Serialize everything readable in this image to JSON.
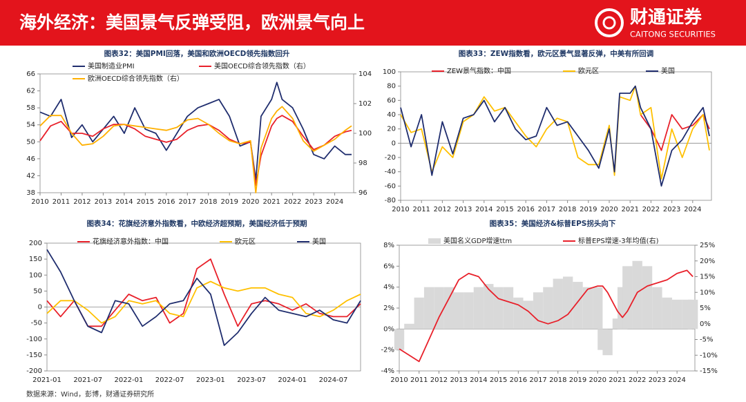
{
  "header": {
    "title": "海外经济：美国景气反弹受阻，欧洲景气向上",
    "logo_cn": "财通证券",
    "logo_en": "CAITONG SECURITIES"
  },
  "chart_data": [
    {
      "type": "line",
      "title": "图表32：美国PMI回落，美国和欧洲OECD领先指数回升",
      "x": [
        2010,
        2010.5,
        2011,
        2011.5,
        2012,
        2012.5,
        2013,
        2013.5,
        2014,
        2014.5,
        2015,
        2015.5,
        2016,
        2016.5,
        2017,
        2017.5,
        2018,
        2018.5,
        2019,
        2019.5,
        2020,
        2020.25,
        2020.5,
        2021,
        2021.25,
        2021.5,
        2022,
        2022.5,
        2023,
        2023.5,
        2024,
        2024.5,
        2024.8
      ],
      "xlim": [
        2010,
        2024.9
      ],
      "xticks": [
        2010,
        2011,
        2012,
        2013,
        2014,
        2015,
        2016,
        2017,
        2018,
        2019,
        2020,
        2021,
        2022,
        2023,
        2024
      ],
      "ylim": [
        38,
        66
      ],
      "yticks": [
        38,
        42,
        46,
        50,
        54,
        58,
        62,
        66
      ],
      "y2lim": [
        96,
        104
      ],
      "y2ticks": [
        96,
        98,
        100,
        102,
        104
      ],
      "series": [
        {
          "name": "美国制造业PMI",
          "color": "#1f2d6e",
          "values": [
            57,
            56,
            60,
            51,
            54,
            50,
            53,
            56,
            52,
            58,
            53,
            52,
            48,
            52,
            56,
            58,
            59,
            60,
            56,
            49,
            50,
            41,
            56,
            60,
            64,
            60,
            58,
            53,
            47,
            46,
            49,
            47,
            47
          ]
        },
        {
          "name": "美国OECD综合领先指数（右）",
          "color": "#e8202a",
          "axis": "y2",
          "values": [
            99.5,
            100.5,
            100.8,
            100,
            100,
            99.8,
            100.3,
            100.6,
            100.6,
            100.3,
            99.8,
            99.6,
            99.4,
            99.6,
            100.2,
            100.5,
            100.6,
            100.2,
            99.6,
            99.3,
            99.4,
            96.5,
            98.5,
            100.5,
            101,
            101.2,
            100.8,
            99.8,
            98.9,
            99.2,
            99.8,
            100.1,
            100.2
          ]
        },
        {
          "name": "欧洲OECD综合领先指数（右）",
          "color": "#ffb000",
          "axis": "y2",
          "values": [
            100.5,
            101.2,
            101.2,
            100,
            99.2,
            99.3,
            99.8,
            100.5,
            100.6,
            100.5,
            100.4,
            100.3,
            100.2,
            100.4,
            100.9,
            101,
            100.6,
            100,
            99.5,
            99.3,
            99.5,
            96,
            99,
            101,
            101.5,
            101.8,
            101,
            99.5,
            98.8,
            99.2,
            99.6,
            100.2,
            100.5
          ]
        }
      ]
    },
    {
      "type": "line",
      "title": "图表33：ZEW指数看，欧元区景气显著反弹，中美有所回调",
      "x": [
        2010,
        2010.5,
        2011,
        2011.5,
        2012,
        2012.5,
        2013,
        2013.5,
        2014,
        2014.5,
        2015,
        2015.5,
        2016,
        2016.5,
        2017,
        2017.5,
        2018,
        2018.5,
        2019,
        2019.5,
        2020,
        2020.25,
        2020.5,
        2021,
        2021.25,
        2021.5,
        2022,
        2022.5,
        2023,
        2023.5,
        2024,
        2024.5,
        2024.8
      ],
      "xlim": [
        2010,
        2024.9
      ],
      "xticks": [
        2010,
        2011,
        2012,
        2013,
        2014,
        2015,
        2016,
        2017,
        2018,
        2019,
        2020,
        2021,
        2022,
        2023,
        2024
      ],
      "ylim": [
        -80,
        100
      ],
      "yticks": [
        -80,
        -60,
        -40,
        -20,
        0,
        20,
        40,
        60,
        80,
        100
      ],
      "series": [
        {
          "name": "ZEW景气指数：中国",
          "color": "#e8202a",
          "values": [
            null,
            null,
            null,
            null,
            null,
            null,
            null,
            null,
            null,
            null,
            null,
            null,
            null,
            null,
            null,
            null,
            null,
            null,
            null,
            null,
            null,
            null,
            null,
            null,
            null,
            40,
            20,
            -10,
            40,
            20,
            25,
            40,
            20
          ]
        },
        {
          "name": "欧元区",
          "color": "#ffc000",
          "values": [
            40,
            15,
            20,
            -40,
            -5,
            -20,
            30,
            40,
            65,
            45,
            50,
            30,
            10,
            -5,
            20,
            35,
            30,
            -20,
            -30,
            -30,
            25,
            -45,
            65,
            60,
            80,
            40,
            50,
            -50,
            20,
            -20,
            20,
            40,
            -10
          ]
        },
        {
          "name": "美国",
          "color": "#1f2d6e",
          "values": [
            50,
            -5,
            40,
            -45,
            30,
            -15,
            35,
            40,
            60,
            30,
            50,
            20,
            5,
            10,
            50,
            25,
            30,
            10,
            -10,
            -35,
            20,
            -40,
            70,
            70,
            80,
            50,
            20,
            -60,
            -10,
            5,
            30,
            50,
            10
          ]
        }
      ]
    },
    {
      "type": "line",
      "title": "图表34：花旗经济意外指数看，中欧经济超预期，美国经济低于预期",
      "categories": [
        "2021-01",
        null,
        null,
        "2021-07",
        null,
        null,
        "2022-01",
        null,
        null,
        "2022-07",
        null,
        null,
        "2023-01",
        null,
        null,
        "2023-07",
        null,
        null,
        "2024-01",
        null,
        null,
        "2024-07",
        null,
        null
      ],
      "ylim": [
        -200,
        200
      ],
      "yticks": [
        -200,
        -150,
        -100,
        -50,
        0,
        50,
        100,
        150,
        200
      ],
      "series": [
        {
          "name": "花旗经济意外指数：中国",
          "color": "#e8202a",
          "values": [
            20,
            -30,
            20,
            -60,
            -60,
            -10,
            40,
            20,
            30,
            -50,
            -20,
            120,
            150,
            40,
            -60,
            10,
            20,
            10,
            -10,
            10,
            -20,
            -30,
            -30,
            10
          ]
        },
        {
          "name": "欧元区",
          "color": "#ffc000",
          "values": [
            -20,
            20,
            20,
            -10,
            -50,
            -30,
            20,
            10,
            20,
            -20,
            -30,
            60,
            80,
            60,
            50,
            60,
            60,
            40,
            30,
            -20,
            -30,
            -10,
            20,
            40
          ]
        },
        {
          "name": "美国",
          "color": "#1f2d6e",
          "values": [
            180,
            110,
            20,
            -60,
            -80,
            20,
            10,
            -60,
            -30,
            10,
            20,
            90,
            40,
            -120,
            -80,
            -20,
            30,
            -10,
            -20,
            -30,
            -10,
            -40,
            -50,
            20
          ]
        }
      ]
    },
    {
      "type": "combo",
      "title": "图表35：美国经济&标普EPS拐头向下",
      "x": [
        2010,
        2010.5,
        2011,
        2011.5,
        2012,
        2012.5,
        2013,
        2013.5,
        2014,
        2014.5,
        2015,
        2015.5,
        2016,
        2016.5,
        2017,
        2017.5,
        2018,
        2018.5,
        2019,
        2019.5,
        2020,
        2020.25,
        2020.5,
        2021,
        2021.25,
        2021.5,
        2022,
        2022.5,
        2023,
        2023.5,
        2024,
        2024.5,
        2024.8
      ],
      "xlim": [
        2010,
        2024.9
      ],
      "xticks": [
        2010,
        2011,
        2012,
        2013,
        2014,
        2015,
        2016,
        2017,
        2018,
        2019,
        2020,
        2021,
        2022,
        2023,
        2024
      ],
      "ylim": [
        -4,
        8
      ],
      "yticks": [
        {
          "value": -4,
          "label": "-4%"
        },
        {
          "value": -2,
          "label": "-2%"
        },
        {
          "value": 0,
          "label": "0%"
        },
        {
          "value": 2,
          "label": "2%"
        },
        {
          "value": 4,
          "label": "4%"
        },
        {
          "value": 6,
          "label": "6%"
        },
        {
          "value": 8,
          "label": "8%"
        }
      ],
      "y2lim": [
        -15,
        25
      ],
      "y2ticks": [
        {
          "value": -15,
          "label": "-15%"
        },
        {
          "value": -10,
          "label": "-10%"
        },
        {
          "value": -5,
          "label": "-5%"
        },
        {
          "value": 0,
          "label": "0%"
        },
        {
          "value": 5,
          "label": "5%"
        },
        {
          "value": 10,
          "label": "10%"
        },
        {
          "value": 15,
          "label": "15%"
        },
        {
          "value": 20,
          "label": "20%"
        },
        {
          "value": 25,
          "label": "25%"
        }
      ],
      "series": [
        {
          "name": "美国名义GDP增速ttm",
          "type": "bar",
          "color": "#d9d9d9",
          "values": [
            -2,
            0.5,
            3,
            4,
            4,
            4,
            3.5,
            3.5,
            4,
            4.3,
            4,
            4,
            3,
            2.7,
            3.5,
            4,
            4.8,
            5,
            4.5,
            4,
            4,
            -2,
            -2.5,
            1,
            4,
            6,
            6.5,
            6,
            4,
            3,
            2.8,
            2.8,
            2.8
          ]
        },
        {
          "name": "标普EPS增速-3年均值(右)",
          "type": "line",
          "axis": "y2",
          "color": "#e8202a",
          "values": [
            -8,
            -10,
            -12,
            -5,
            2,
            8,
            14,
            16,
            15,
            11,
            8,
            7,
            6,
            4,
            1,
            0,
            1,
            3,
            7,
            11,
            12,
            12,
            10,
            4,
            2,
            4,
            10,
            12,
            13,
            14,
            16,
            17,
            15
          ]
        }
      ]
    }
  ],
  "footer": {
    "source": "数据来源：Wind，彭博，财通证券研究所"
  }
}
